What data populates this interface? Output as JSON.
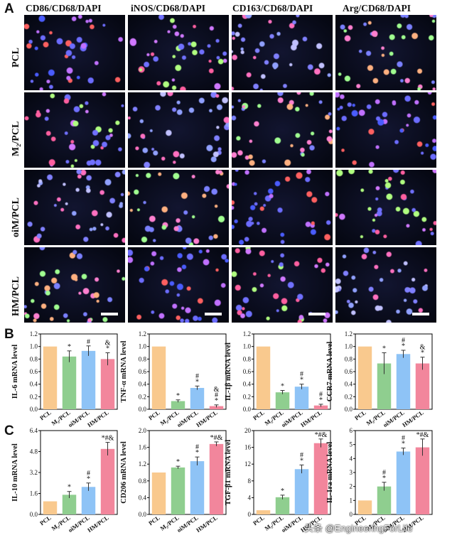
{
  "panel_labels": {
    "a": "A",
    "b": "B",
    "c": "C"
  },
  "columns": [
    "CD86/CD68/DAPI",
    "iNOS/CD68/DAPI",
    "CD163/CD68/DAPI",
    "Arg/CD68/DAPI"
  ],
  "rows": [
    "PCL",
    "M₂/PCL",
    "oiM/PCL",
    "HM/PCL"
  ],
  "watermark": "头条 @EngineeringForLife",
  "colors": {
    "PCL": "#f9c98e",
    "M2/PCL": "#8fce8f",
    "oiM/PCL": "#8ec3f6",
    "HM/PCL": "#f2869c"
  },
  "chart_data": [
    {
      "type": "bar",
      "panel": "B",
      "ylabel": "IL-6 mRNA level",
      "categories": [
        "PCL",
        "M₂/PCL",
        "oiM/PCL",
        "HM/PCL"
      ],
      "values": [
        1.0,
        0.84,
        0.93,
        0.8
      ],
      "errors": [
        0,
        0.09,
        0.08,
        0.1
      ],
      "ylim": [
        0,
        1.2
      ],
      "yticks": [
        "0.0",
        "0.2",
        "0.4",
        "0.6",
        "0.8",
        "1.0",
        "1.2"
      ],
      "annotations": [
        "",
        "*",
        "#",
        "&\n*"
      ]
    },
    {
      "type": "bar",
      "panel": "B",
      "ylabel": "TNF-α mRNA level",
      "categories": [
        "PCL",
        "M₂/PCL",
        "oiM/PCL",
        "HM/PCL"
      ],
      "values": [
        1.0,
        0.13,
        0.34,
        0.05
      ],
      "errors": [
        0,
        0.02,
        0.03,
        0.02
      ],
      "ylim": [
        0,
        1.2
      ],
      "yticks": [
        "0.0",
        "0.2",
        "0.4",
        "0.6",
        "0.8",
        "1.0",
        "1.2"
      ],
      "annotations": [
        "",
        "*",
        "#\n*",
        "&\n#\n*"
      ]
    },
    {
      "type": "bar",
      "panel": "B",
      "ylabel": "IL-1β mRNA level",
      "categories": [
        "PCL",
        "M₂/PCL",
        "oiM/PCL",
        "HM/PCL"
      ],
      "values": [
        1.0,
        0.27,
        0.36,
        0.06
      ],
      "errors": [
        0,
        0.03,
        0.04,
        0.02
      ],
      "ylim": [
        0,
        1.2
      ],
      "yticks": [
        "0.0",
        "0.2",
        "0.4",
        "0.6",
        "0.8",
        "1.0",
        "1.2"
      ],
      "annotations": [
        "",
        "*",
        "#\n*",
        "#\n*"
      ]
    },
    {
      "type": "bar",
      "panel": "B",
      "ylabel": "CCR7 mRNA level",
      "categories": [
        "PCL",
        "M₂/PCL",
        "oiM/PCL",
        "HM/PCL"
      ],
      "values": [
        1.0,
        0.73,
        0.88,
        0.73
      ],
      "errors": [
        0,
        0.17,
        0.06,
        0.1
      ],
      "ylim": [
        0,
        1.2
      ],
      "yticks": [
        "0.0",
        "0.2",
        "0.4",
        "0.6",
        "0.8",
        "1.0",
        "1.2"
      ],
      "annotations": [
        "",
        "*",
        "#\n*",
        "&\n*"
      ]
    },
    {
      "type": "bar",
      "panel": "C",
      "ylabel": "IL-10 mRNA level",
      "categories": [
        "PCL",
        "M₂/PCL",
        "oiM/PCL",
        "HM/PCL"
      ],
      "values": [
        1.0,
        1.5,
        2.1,
        5.0
      ],
      "errors": [
        0,
        0.25,
        0.3,
        0.5
      ],
      "ylim": [
        0,
        6.4
      ],
      "yticks": [
        "0.0",
        "1.6",
        "3.2",
        "4.8",
        "6.4"
      ],
      "annotations": [
        "",
        "*",
        "#\n*",
        "*#&"
      ]
    },
    {
      "type": "bar",
      "panel": "C",
      "ylabel": "CD206 mRNA level",
      "categories": [
        "PCL",
        "M₂/PCL",
        "oiM/PCL",
        "HM/PCL"
      ],
      "values": [
        1.0,
        1.12,
        1.27,
        1.68
      ],
      "errors": [
        0,
        0.03,
        0.1,
        0.05
      ],
      "ylim": [
        0,
        2.0
      ],
      "yticks": [
        "0.0",
        "0.4",
        "0.8",
        "1.2",
        "1.6",
        "2.0"
      ],
      "annotations": [
        "",
        "*",
        "#\n*",
        "*#&"
      ]
    },
    {
      "type": "bar",
      "panel": "C",
      "ylabel": "TGF-β1 mRNA level",
      "categories": [
        "PCL",
        "M₂/PCL",
        "oiM/PCL",
        "HM/PCL"
      ],
      "values": [
        1.0,
        4.1,
        10.8,
        17.0
      ],
      "errors": [
        0,
        0.5,
        1.0,
        1.0
      ],
      "ylim": [
        0,
        20
      ],
      "yticks": [
        "0",
        "4",
        "8",
        "12",
        "16",
        "20"
      ],
      "annotations": [
        "",
        "*",
        "#\n*",
        "*#&"
      ]
    },
    {
      "type": "bar",
      "panel": "C",
      "ylabel": "IL-1ra mRNA level",
      "categories": [
        "PCL",
        "M₂/PCL",
        "oiM/PCL",
        "HM/PCL"
      ],
      "values": [
        1.0,
        2.0,
        4.5,
        4.8
      ],
      "errors": [
        0,
        0.3,
        0.25,
        0.6
      ],
      "ylim": [
        0,
        6
      ],
      "yticks": [
        "0",
        "1",
        "2",
        "3",
        "4",
        "5",
        "6"
      ],
      "annotations": [
        "",
        "#\n*",
        "#\n*",
        "*#&"
      ]
    }
  ]
}
